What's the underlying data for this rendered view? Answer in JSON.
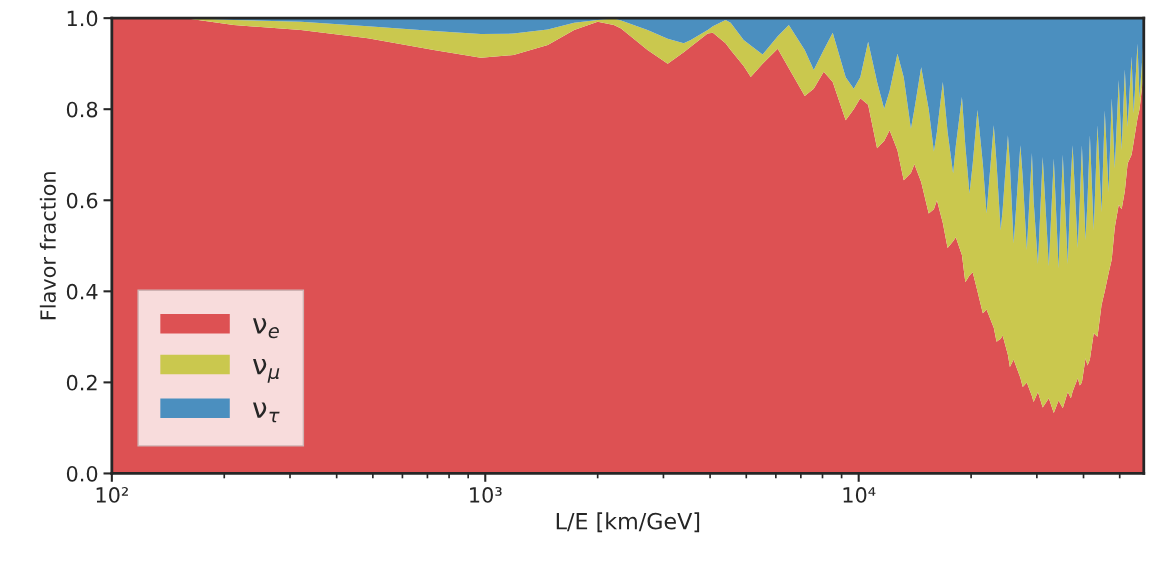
{
  "chart_data": {
    "type": "area",
    "stacked": true,
    "xlabel": "L/E [km/GeV]",
    "ylabel": "Flavor fraction",
    "log": "x",
    "xlim": [
      100,
      58000
    ],
    "ylim": [
      0,
      1.0
    ],
    "xticks": [
      {
        "value": 100,
        "label": "10²"
      },
      {
        "value": 1000,
        "label": "10³"
      },
      {
        "value": 10000,
        "label": "10⁴"
      }
    ],
    "yticks": [
      {
        "value": 0,
        "label": "0.0"
      },
      0.2,
      0.4,
      0.6,
      0.8,
      {
        "value": 1.0,
        "label": "1.0"
      }
    ],
    "legend": "bottom left",
    "x": [
      100,
      163,
      212,
      321,
      485,
      728,
      973,
      1190,
      1470,
      1730,
      2000,
      2210,
      2310,
      2720,
      3080,
      3400,
      3550,
      3940,
      4070,
      4400,
      4540,
      4920,
      5140,
      5530,
      6070,
      6500,
      7170,
      7580,
      8060,
      8520,
      9230,
      9700,
      10100,
      10600,
      11200,
      11700,
      12100,
      12700,
      13200,
      13800,
      14100,
      14700,
      15400,
      15900,
      16200,
      16800,
      17300,
      17900,
      18200,
      18900,
      19300,
      19800,
      20200,
      20800,
      21500,
      22000,
      23000,
      23400,
      24000,
      24300,
      25100,
      25400,
      26000,
      27100,
      27500,
      28200,
      29100,
      29400,
      30200,
      31100,
      32300,
      33300,
      34300,
      35200,
      36300,
      37000,
      37400,
      38600,
      39100,
      39600,
      40500,
      41000,
      41600,
      42600,
      43600,
      44700,
      45600,
      46700,
      47600,
      48500,
      49700,
      50600,
      51600,
      52500,
      53800,
      54500,
      55800,
      56500,
      58000
    ],
    "series": [
      {
        "name": "ν$_{e}$",
        "color": "#dd5153",
        "values": [
          1.0,
          0.998,
          0.985,
          0.974,
          0.956,
          0.93,
          0.913,
          0.919,
          0.941,
          0.974,
          0.992,
          0.985,
          0.977,
          0.93,
          0.9,
          0.925,
          0.937,
          0.966,
          0.968,
          0.945,
          0.93,
          0.895,
          0.871,
          0.9,
          0.933,
          0.89,
          0.829,
          0.845,
          0.882,
          0.86,
          0.776,
          0.8,
          0.824,
          0.81,
          0.714,
          0.73,
          0.754,
          0.71,
          0.644,
          0.66,
          0.679,
          0.64,
          0.571,
          0.58,
          0.6,
          0.55,
          0.495,
          0.51,
          0.519,
          0.48,
          0.42,
          0.435,
          0.442,
          0.4,
          0.352,
          0.36,
          0.32,
          0.289,
          0.296,
          0.303,
          0.26,
          0.234,
          0.25,
          0.21,
          0.19,
          0.2,
          0.17,
          0.157,
          0.179,
          0.145,
          0.165,
          0.133,
          0.16,
          0.143,
          0.179,
          0.165,
          0.18,
          0.209,
          0.193,
          0.2,
          0.253,
          0.237,
          0.25,
          0.308,
          0.3,
          0.37,
          0.4,
          0.44,
          0.47,
          0.54,
          0.59,
          0.58,
          0.62,
          0.681,
          0.7,
          0.728,
          0.78,
          0.8,
          0.882
        ]
      },
      {
        "name": "ν$_{μ}$",
        "color": "#cac84e",
        "values": [
          0,
          0.002,
          0.011,
          0.018,
          0.026,
          0.042,
          0.052,
          0.047,
          0.034,
          0.016,
          0.004,
          0.014,
          0.018,
          0.044,
          0.055,
          0.02,
          0.015,
          0.008,
          0.014,
          0.051,
          0.06,
          0.057,
          0.069,
          0.02,
          0.027,
          0.095,
          0.101,
          0.041,
          0.048,
          0.108,
          0.094,
          0.045,
          0.046,
          0.138,
          0.146,
          0.071,
          0.086,
          0.212,
          0.226,
          0.097,
          0.121,
          0.252,
          0.229,
          0.127,
          0.15,
          0.31,
          0.255,
          0.149,
          0.201,
          0.347,
          0.3,
          0.18,
          0.238,
          0.398,
          0.328,
          0.211,
          0.445,
          0.391,
          0.238,
          0.277,
          0.483,
          0.446,
          0.255,
          0.511,
          0.46,
          0.29,
          0.534,
          0.443,
          0.281,
          0.55,
          0.29,
          0.559,
          0.29,
          0.557,
          0.281,
          0.485,
          0.541,
          0.286,
          0.407,
          0.521,
          0.259,
          0.363,
          0.493,
          0.226,
          0.465,
          0.204,
          0.397,
          0.178,
          0.354,
          0.13,
          0.274,
          0.13,
          0.267,
          0.08,
          0.216,
          0.063,
          0.164,
          0.024,
          0.078
        ]
      },
      {
        "name": "ν$_{τ}$",
        "color": "#4b8fbf",
        "values": [
          0,
          0,
          0.004,
          0.008,
          0.018,
          0.028,
          0.035,
          0.034,
          0.025,
          0.01,
          0.004,
          0.001,
          0.005,
          0.026,
          0.045,
          0.055,
          0.048,
          0.026,
          0.018,
          0.004,
          0.01,
          0.048,
          0.06,
          0.08,
          0.04,
          0.015,
          0.07,
          0.114,
          0.07,
          0.032,
          0.13,
          0.155,
          0.13,
          0.052,
          0.14,
          0.199,
          0.16,
          0.078,
          0.13,
          0.243,
          0.2,
          0.108,
          0.2,
          0.293,
          0.25,
          0.14,
          0.25,
          0.341,
          0.28,
          0.173,
          0.28,
          0.385,
          0.32,
          0.202,
          0.32,
          0.429,
          0.235,
          0.32,
          0.466,
          0.42,
          0.257,
          0.32,
          0.495,
          0.279,
          0.35,
          0.51,
          0.296,
          0.4,
          0.54,
          0.305,
          0.545,
          0.308,
          0.55,
          0.3,
          0.54,
          0.35,
          0.279,
          0.505,
          0.4,
          0.279,
          0.488,
          0.4,
          0.257,
          0.466,
          0.235,
          0.426,
          0.203,
          0.382,
          0.176,
          0.33,
          0.136,
          0.29,
          0.113,
          0.239,
          0.084,
          0.209,
          0.056,
          0.176,
          0.04
        ]
      }
    ]
  }
}
